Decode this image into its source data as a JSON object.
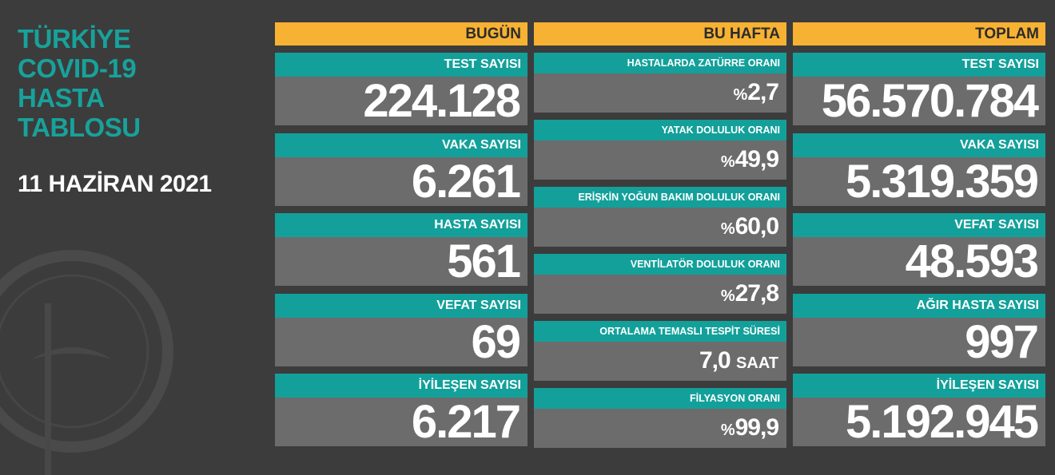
{
  "title_lines": [
    "TÜRKİYE",
    "COVID-19",
    "HASTA",
    "TABLOSU"
  ],
  "date": "11 HAZİRAN 2021",
  "columns": [
    {
      "header": "BUGÜN",
      "items": [
        {
          "label": "TEST SAYISI",
          "value": "224.128"
        },
        {
          "label": "VAKA SAYISI",
          "value": "6.261"
        },
        {
          "label": "HASTA SAYISI",
          "value": "561"
        },
        {
          "label": "VEFAT SAYISI",
          "value": "69"
        },
        {
          "label": "İYİLEŞEN SAYISI",
          "value": "6.217"
        }
      ]
    },
    {
      "header": "BU HAFTA",
      "items": [
        {
          "label": "HASTALARDA ZATÜRRE ORANI",
          "prefix": "%",
          "value": "2,7"
        },
        {
          "label": "YATAK DOLULUK ORANI",
          "prefix": "%",
          "value": "49,9"
        },
        {
          "label": "ERİŞKİN YOĞUN BAKIM DOLULUK ORANI",
          "prefix": "%",
          "value": "60,0"
        },
        {
          "label": "VENTİLATÖR DOLULUK ORANI",
          "prefix": "%",
          "value": "27,8"
        },
        {
          "label": "ORTALAMA TEMASLI TESPİT SÜRESİ",
          "value": "7,0",
          "unit": "SAAT"
        },
        {
          "label": "FİLYASYON ORANI",
          "prefix": "%",
          "value": "99,9"
        }
      ]
    },
    {
      "header": "TOPLAM",
      "items": [
        {
          "label": "TEST SAYISI",
          "value": "56.570.784"
        },
        {
          "label": "VAKA SAYISI",
          "value": "5.319.359"
        },
        {
          "label": "VEFAT SAYISI",
          "value": "48.593"
        },
        {
          "label": "AĞIR HASTA SAYISI",
          "value": "997"
        },
        {
          "label": "İYİLEŞEN SAYISI",
          "value": "5.192.945"
        }
      ]
    }
  ]
}
